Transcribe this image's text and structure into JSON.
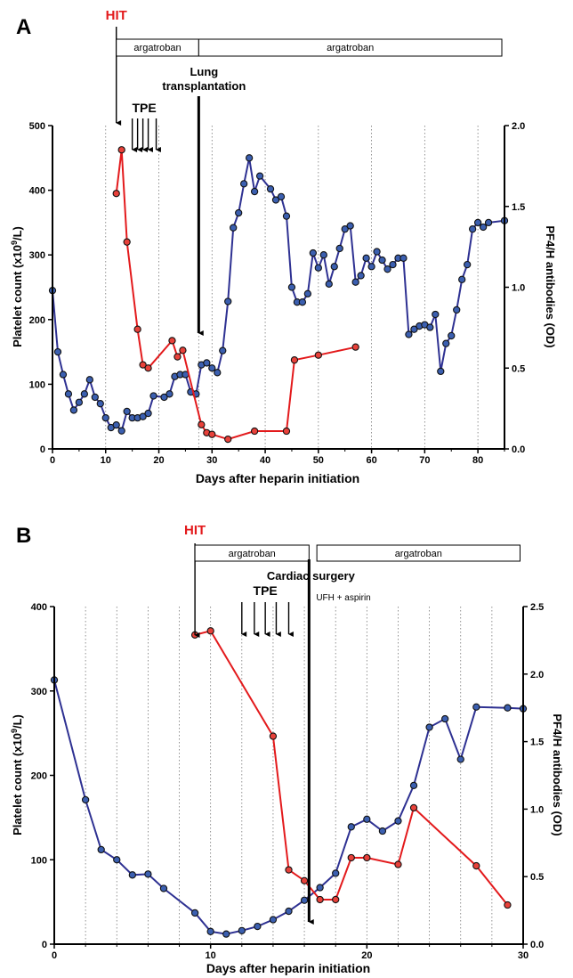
{
  "chart_data": [
    {
      "type": "line",
      "panel_label": "A",
      "xlabel": "Days after heparin initiation",
      "ylabel_left": "Platelet count (x10",
      "ylabel_left_sup": "9",
      "ylabel_left_tail": "/L)",
      "ylabel_right": "PF4/H antibodies (OD)",
      "xlim": [
        0,
        85
      ],
      "ylim_left": [
        0,
        500
      ],
      "ylim_right": [
        0,
        2.0
      ],
      "xticks": [
        0,
        10,
        20,
        30,
        40,
        50,
        60,
        70,
        80
      ],
      "yticks_left": [
        0,
        100,
        200,
        300,
        400,
        500
      ],
      "yticks_right": [
        "0.0",
        "0.5",
        "1.0",
        "1.5",
        "2.0"
      ],
      "dotted_gridlines_x": [
        10,
        20,
        27.5,
        30,
        40,
        50,
        60,
        70,
        80
      ],
      "annotations": {
        "hit": "HIT",
        "tpe": "TPE",
        "event_line1": "Lung",
        "event_line2": "transplantation",
        "drug_box_1": "argatroban",
        "drug_box_2": "argatroban"
      },
      "annotation_positions": {
        "hit_day": 12,
        "tpe_days": [
          15,
          16,
          17,
          18,
          19.5
        ],
        "event_day": 27.5,
        "drug_box_1_days": [
          12,
          27.5
        ],
        "drug_box_2_days": [
          27.5,
          84.5
        ]
      },
      "series": [
        {
          "axis": "left",
          "color": "#2e3192",
          "marker_fill": "#3b5fb0",
          "x": [
            0,
            1,
            2,
            3,
            4,
            5,
            6,
            7,
            8,
            9,
            10,
            11,
            12,
            13,
            14,
            15,
            16,
            17,
            18,
            19,
            21,
            22,
            23,
            24,
            25,
            26,
            27,
            28,
            29,
            30,
            31,
            32,
            33,
            34,
            35,
            36,
            37,
            38,
            39,
            41,
            42,
            43,
            44,
            45,
            46,
            47,
            48,
            49,
            50,
            51,
            52,
            53,
            54,
            55,
            56,
            57,
            58,
            59,
            60,
            61,
            62,
            63,
            64,
            65,
            66,
            67,
            68,
            69,
            70,
            71,
            72,
            73,
            74,
            75,
            76,
            77,
            78,
            79,
            80,
            81,
            82,
            85
          ],
          "values": [
            245,
            150,
            115,
            85,
            60,
            72,
            85,
            107,
            80,
            70,
            48,
            33,
            37,
            28,
            58,
            48,
            48,
            50,
            55,
            82,
            80,
            85,
            112,
            115,
            115,
            88,
            85,
            130,
            133,
            125,
            118,
            152,
            228,
            342,
            365,
            410,
            450,
            398,
            422,
            402,
            385,
            390,
            360,
            250,
            227,
            227,
            240,
            303,
            280,
            300,
            255,
            282,
            310,
            340,
            345,
            258,
            268,
            295,
            282,
            305,
            292,
            278,
            285,
            295,
            295,
            177,
            185,
            190,
            192,
            188,
            208,
            120,
            163,
            175,
            215,
            262,
            285,
            340,
            350,
            343,
            350,
            353
          ]
        },
        {
          "axis": "right",
          "color": "#e31a1c",
          "marker_fill": "#e8413a",
          "x": [
            12,
            13,
            14,
            16,
            17,
            18,
            22.5,
            23.5,
            24.5,
            28,
            29,
            30,
            33,
            38,
            44,
            45.5,
            50,
            57
          ],
          "values": [
            1.58,
            1.85,
            1.28,
            0.74,
            0.52,
            0.5,
            0.67,
            0.57,
            0.61,
            0.15,
            0.1,
            0.09,
            0.06,
            0.11,
            0.11,
            0.55,
            0.58,
            0.63
          ]
        }
      ]
    },
    {
      "type": "line",
      "panel_label": "B",
      "xlabel": "Days after heparin initiation",
      "ylabel_left": "Platelet count (x10",
      "ylabel_left_sup": "9",
      "ylabel_left_tail": "/L)",
      "ylabel_right": "PF4/H antibodies (OD)",
      "xlim": [
        0,
        30
      ],
      "ylim_left": [
        0,
        400
      ],
      "ylim_right": [
        0,
        2.5
      ],
      "xticks": [
        0,
        10,
        20,
        30
      ],
      "yticks_left": [
        0,
        100,
        200,
        300,
        400
      ],
      "yticks_right": [
        "0.0",
        "0.5",
        "1.0",
        "1.5",
        "2.0",
        "2.5"
      ],
      "dotted_gridlines_x": [
        2,
        4,
        6,
        8,
        10,
        12,
        14,
        16,
        18,
        20,
        22,
        24,
        26,
        28
      ],
      "annotations": {
        "hit": "HIT",
        "tpe": "TPE",
        "event_line1": "Cardiac surgery",
        "sub_note": "UFH + aspirin",
        "drug_box_1": "argatroban",
        "drug_box_2": "argatroban"
      },
      "annotation_positions": {
        "hit_day": 9,
        "tpe_days": [
          12,
          12.8,
          13.5,
          14.2,
          15
        ],
        "event_day": 16.3,
        "drug_box_1_days": [
          9,
          16.3
        ],
        "drug_box_2_days": [
          16.8,
          29.8
        ]
      },
      "series": [
        {
          "axis": "left",
          "color": "#2e3192",
          "marker_fill": "#3b5fb0",
          "x": [
            0,
            2,
            3,
            4,
            5,
            6,
            7,
            9,
            10,
            11,
            12,
            13,
            14,
            15,
            16,
            17,
            18,
            19,
            20,
            21,
            22,
            23,
            24,
            25,
            26,
            27,
            29,
            30
          ],
          "values": [
            313,
            171,
            112,
            100,
            82,
            83,
            66,
            37,
            15,
            12,
            16,
            21,
            29,
            39,
            52,
            67,
            84,
            139,
            148,
            134,
            146,
            188,
            257,
            267,
            219,
            281,
            280,
            279
          ]
        },
        {
          "axis": "right",
          "color": "#e31a1c",
          "marker_fill": "#e8413a",
          "x": [
            9,
            10,
            14,
            15,
            16,
            17,
            18,
            19,
            20,
            22,
            23,
            27,
            29
          ],
          "values": [
            2.29,
            2.32,
            1.54,
            0.55,
            0.47,
            0.33,
            0.33,
            0.64,
            0.64,
            0.59,
            1.01,
            0.58,
            0.29
          ]
        }
      ]
    }
  ]
}
